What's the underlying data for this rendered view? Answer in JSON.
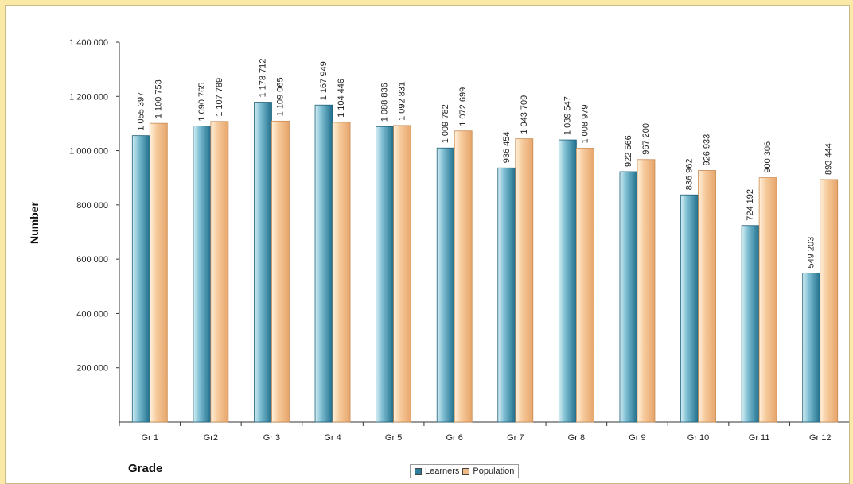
{
  "chart_data": {
    "type": "bar",
    "xlabel": "Grade",
    "ylabel": "Number",
    "categories": [
      "Gr 1",
      "Gr2",
      "Gr 3",
      "Gr 4",
      "Gr 5",
      "Gr 6",
      "Gr 7",
      "Gr 8",
      "Gr 9",
      "Gr 10",
      "Gr 11",
      "Gr 12"
    ],
    "series": [
      {
        "name": "Learners",
        "color": "#2f7f9c",
        "values": [
          1055397,
          1090765,
          1178712,
          1167949,
          1088836,
          1009782,
          936454,
          1039547,
          922566,
          836962,
          724192,
          549203
        ],
        "labels": [
          "1 055 397",
          "1 090 765",
          "1 178 712",
          "1 167 949",
          "1 088 836",
          "1 009 782",
          "936 454",
          "1 039 547",
          "922 566",
          "836 962",
          "724 192",
          "549 203"
        ]
      },
      {
        "name": "Population",
        "color": "#f0b984",
        "values": [
          1100753,
          1107789,
          1109065,
          1104446,
          1092831,
          1072699,
          1043709,
          1008979,
          967200,
          926933,
          900306,
          893444
        ],
        "labels": [
          "1 100 753",
          "1 107 789",
          "1 109 065",
          "1 104 446",
          "1 092 831",
          "1 072 699",
          "1 043 709",
          "1 008 979",
          "967 200",
          "926 933",
          "900 306",
          "893 444"
        ]
      }
    ],
    "ylim": [
      0,
      1400000
    ],
    "yticks": [
      200000,
      400000,
      600000,
      800000,
      1000000,
      1200000,
      1400000
    ],
    "ytick_labels": [
      "200 000",
      "400 000",
      "600 000",
      "800 000",
      "1 000 000",
      "1 200 000",
      "1 400 000"
    ],
    "legend_position": "bottom-center",
    "grid": false
  }
}
